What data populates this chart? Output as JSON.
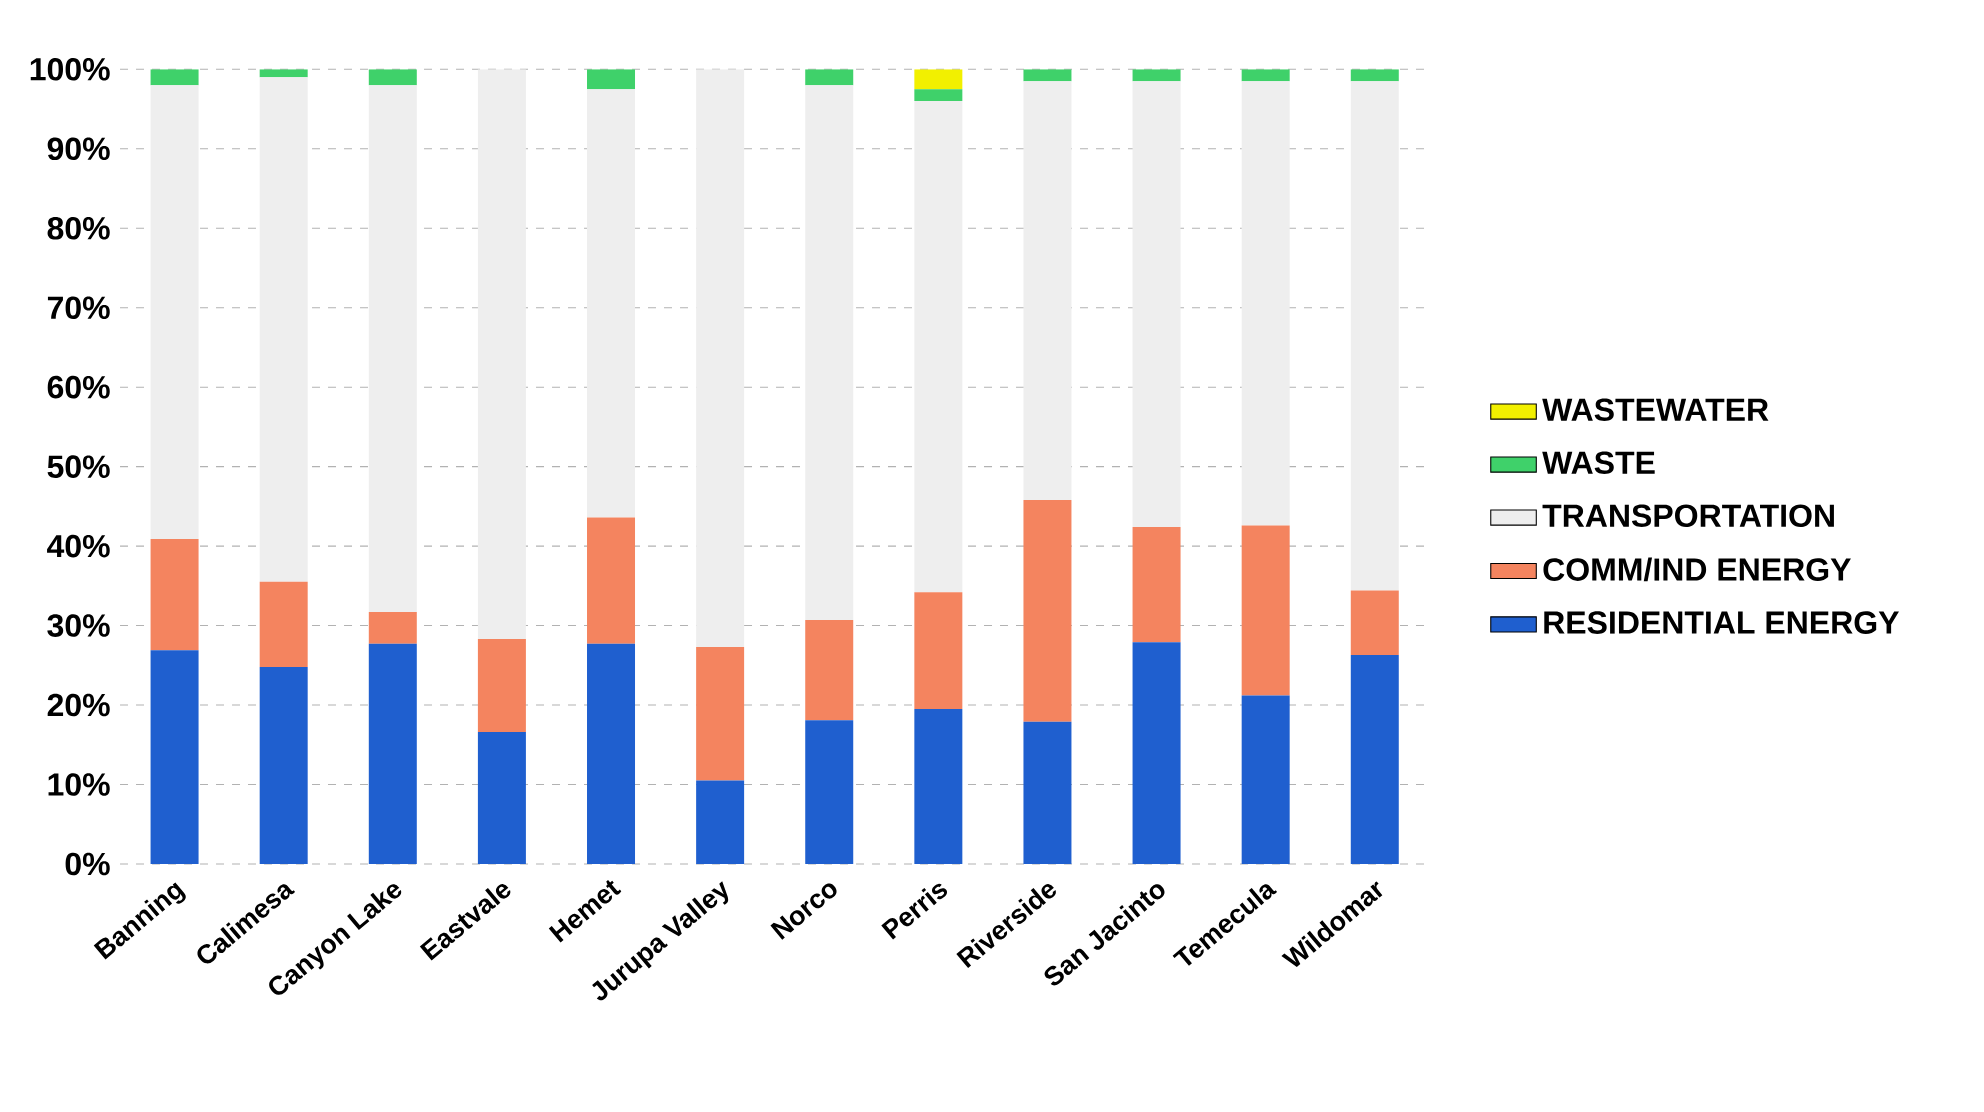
{
  "chart_data": {
    "type": "bar",
    "stacked": true,
    "categories": [
      "Banning",
      "Calimesa",
      "Canyon Lake",
      "Eastvale",
      "Hemet",
      "Jurupa Valley",
      "Norco",
      "Perris",
      "Riverside",
      "San Jacinto",
      "Temecula",
      "Wildomar"
    ],
    "series": [
      {
        "name": "RESIDENTIAL ENERGY",
        "color": "#1f5fcf",
        "values": [
          26.9,
          24.8,
          27.7,
          16.6,
          27.7,
          10.5,
          18.1,
          19.5,
          17.9,
          27.9,
          21.2,
          26.3
        ]
      },
      {
        "name": "COMM/IND ENERGY",
        "color": "#f4845f",
        "values": [
          14,
          10.7,
          4,
          11.7,
          15.9,
          16.8,
          12.6,
          14.7,
          27.9,
          14.5,
          21.4,
          8.1
        ]
      },
      {
        "name": "TRANSPORTATION",
        "color": "#eeeeee",
        "values": [
          57.1,
          63.5,
          66.3,
          71.7,
          53.9,
          72.7,
          67.3,
          61.8,
          52.7,
          56.1,
          55.9,
          64.1
        ]
      },
      {
        "name": "WASTE",
        "color": "#3fd16a",
        "values": [
          2,
          1,
          2,
          0,
          2.5,
          0,
          2,
          1.5,
          1.5,
          1.5,
          1.5,
          1.5
        ]
      },
      {
        "name": "WASTEWATER",
        "color": "#f2f000",
        "values": [
          0,
          0,
          0,
          0,
          0,
          0,
          0,
          2.5,
          0,
          0,
          0,
          0
        ]
      }
    ],
    "ylim": [
      0,
      100
    ],
    "yticks": [
      {
        "value": 0,
        "label": "0%"
      },
      {
        "value": 10,
        "label": "10%"
      },
      {
        "value": 20,
        "label": "20%"
      },
      {
        "value": 30,
        "label": "30%"
      },
      {
        "value": 40,
        "label": "40%"
      },
      {
        "value": 50,
        "label": "50%"
      },
      {
        "value": 60,
        "label": "60%"
      },
      {
        "value": 70,
        "label": "70%"
      },
      {
        "value": 80,
        "label": "80%"
      },
      {
        "value": 90,
        "label": "90%"
      },
      {
        "value": 100,
        "label": "100%"
      }
    ],
    "grid": "y",
    "legend": "right"
  }
}
